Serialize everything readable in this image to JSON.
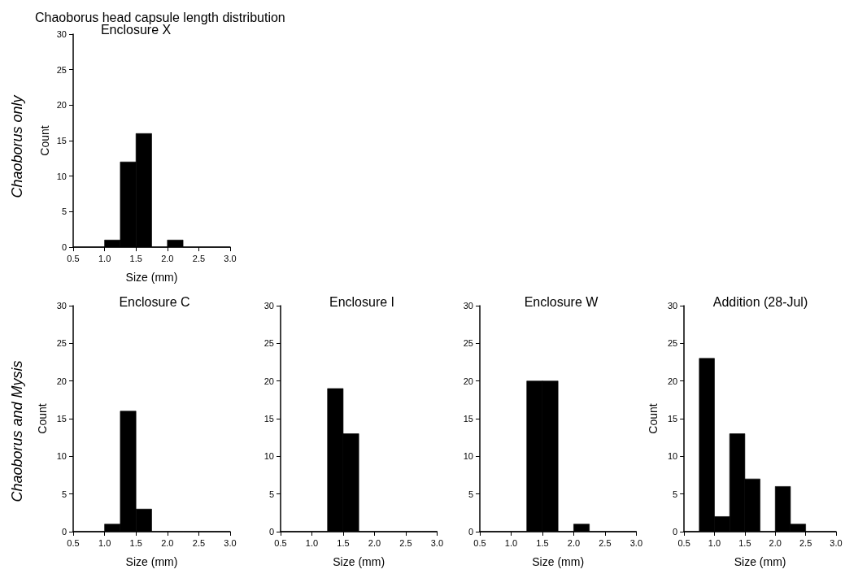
{
  "chart_data": [
    {
      "type": "histogram",
      "title": "Chaoborus head capsule length distribution",
      "subtitle": "Enclosure X",
      "xlabel": "Size (mm)",
      "ylabel": "Count",
      "annotations": [
        "Chaoborus only"
      ],
      "color": "#000000",
      "bins": [
        0.5,
        0.75,
        1.0,
        1.25,
        1.5,
        1.75,
        2.0,
        2.25,
        2.5,
        2.75,
        3.0
      ],
      "values": [
        0,
        0,
        1,
        12,
        16,
        0,
        1,
        0,
        0,
        0
      ],
      "xlim": [
        0.5,
        3.0
      ],
      "xticks": [
        0.5,
        {
          "value": 1,
          "label": "1.0"
        },
        1.5,
        {
          "value": 2,
          "label": "2.0"
        },
        2.5,
        {
          "value": 3,
          "label": "3.0"
        }
      ],
      "ylim": [
        0,
        30
      ],
      "yticks": [
        0,
        5,
        10,
        15,
        20,
        25,
        30
      ],
      "grid": false
    },
    {
      "type": "histogram",
      "title": "Enclosure C",
      "xlabel": "Size (mm)",
      "ylabel": "Count",
      "annotations": [
        "Chaoborus and Mysis"
      ],
      "color": "#000000",
      "bins": [
        0.5,
        0.75,
        1.0,
        1.25,
        1.5,
        1.75,
        2.0,
        2.25,
        2.5,
        2.75,
        3.0
      ],
      "values": [
        0,
        0,
        1,
        16,
        3,
        0,
        0,
        0,
        0,
        0
      ],
      "xlim": [
        0.5,
        3.0
      ],
      "xticks": [
        0.5,
        {
          "value": 1,
          "label": "1.0"
        },
        1.5,
        {
          "value": 2,
          "label": "2.0"
        },
        2.5,
        {
          "value": 3,
          "label": "3.0"
        }
      ],
      "ylim": [
        0,
        30
      ],
      "yticks": [
        0,
        5,
        10,
        15,
        20,
        25,
        30
      ],
      "grid": false
    },
    {
      "type": "histogram",
      "title": "Enclosure I",
      "xlabel": "Size (mm)",
      "color": "#000000",
      "bins": [
        0.5,
        0.75,
        1.0,
        1.25,
        1.5,
        1.75,
        2.0,
        2.25,
        2.5,
        2.75,
        3.0
      ],
      "values": [
        0,
        0,
        0,
        19,
        13,
        0,
        0,
        0,
        0,
        0
      ],
      "xlim": [
        0.5,
        3.0
      ],
      "xticks": [
        0.5,
        {
          "value": 1,
          "label": "1.0"
        },
        1.5,
        {
          "value": 2,
          "label": "2.0"
        },
        2.5,
        {
          "value": 3,
          "label": "3.0"
        }
      ],
      "ylim": [
        0,
        30
      ],
      "yticks": [
        0,
        5,
        10,
        15,
        20,
        25,
        30
      ],
      "grid": false
    },
    {
      "type": "histogram",
      "title": "Enclosure W",
      "xlabel": "Size (mm)",
      "color": "#000000",
      "bins": [
        0.5,
        0.75,
        1.0,
        1.25,
        1.5,
        1.75,
        2.0,
        2.25,
        2.5,
        2.75,
        3.0
      ],
      "values": [
        0,
        0,
        0,
        20,
        20,
        0,
        1,
        0,
        0,
        0
      ],
      "xlim": [
        0.5,
        3.0
      ],
      "xticks": [
        0.5,
        {
          "value": 1,
          "label": "1.0"
        },
        1.5,
        {
          "value": 2,
          "label": "2.0"
        },
        2.5,
        {
          "value": 3,
          "label": "3.0"
        }
      ],
      "ylim": [
        0,
        30
      ],
      "yticks": [
        0,
        5,
        10,
        15,
        20,
        25,
        30
      ],
      "grid": false
    },
    {
      "type": "histogram",
      "title": "Addition (28-Jul)",
      "xlabel": "Size (mm)",
      "ylabel": "Count",
      "color": "#000000",
      "bins": [
        0.5,
        0.75,
        1.0,
        1.25,
        1.5,
        1.75,
        2.0,
        2.25,
        2.5,
        2.75,
        3.0
      ],
      "values": [
        0,
        23,
        2,
        13,
        7,
        0,
        6,
        1,
        0,
        0
      ],
      "xlim": [
        0.5,
        3.0
      ],
      "xticks": [
        0.5,
        {
          "value": 1,
          "label": "1.0"
        },
        1.5,
        {
          "value": 2,
          "label": "2.0"
        },
        2.5,
        {
          "value": 3,
          "label": "3.0"
        }
      ],
      "ylim": [
        0,
        30
      ],
      "yticks": [
        0,
        5,
        10,
        15,
        20,
        25,
        30
      ],
      "grid": false
    }
  ]
}
